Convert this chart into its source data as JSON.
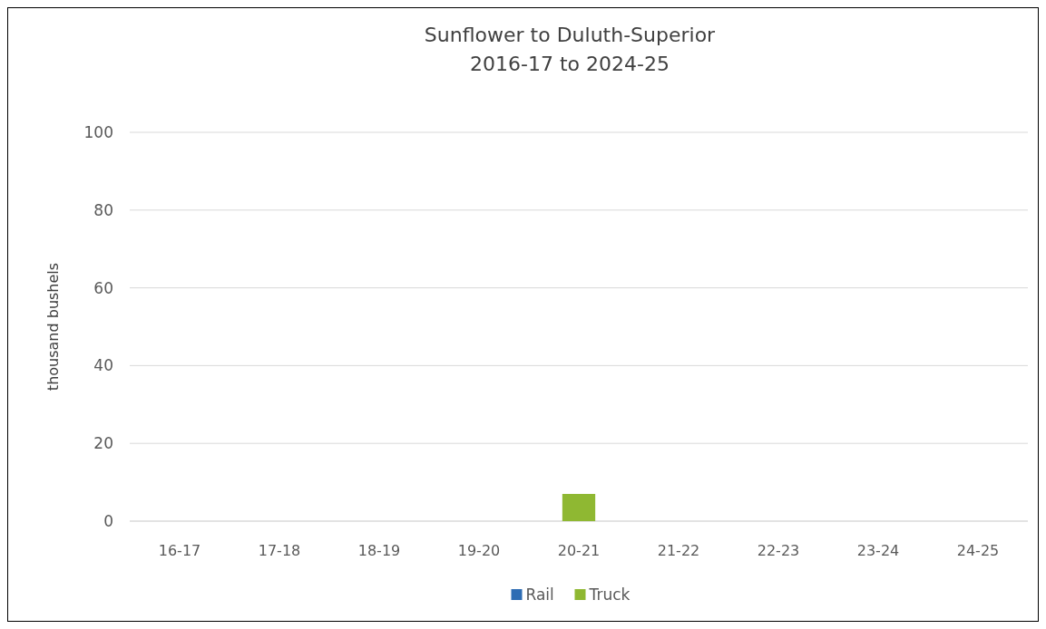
{
  "chart_data": {
    "type": "bar",
    "title": "Sunflower to Duluth-Superior\n2016-17 to 2024-25",
    "ylabel": "thousand bushels",
    "categories": [
      "16-17",
      "17-18",
      "18-19",
      "19-20",
      "20-21",
      "21-22",
      "22-23",
      "23-24",
      "24-25"
    ],
    "series": [
      {
        "name": "Rail",
        "color": "#2e6db4",
        "values": [
          null,
          null,
          null,
          null,
          null,
          null,
          null,
          null,
          null
        ]
      },
      {
        "name": "Truck",
        "color": "#8fb832",
        "values": [
          null,
          null,
          null,
          null,
          7,
          null,
          null,
          null,
          null
        ]
      }
    ],
    "stacked": true,
    "ylim": [
      0,
      100
    ],
    "yticks": [
      0,
      20,
      40,
      60,
      80,
      100
    ],
    "grid": "y",
    "legend": "bottom"
  }
}
